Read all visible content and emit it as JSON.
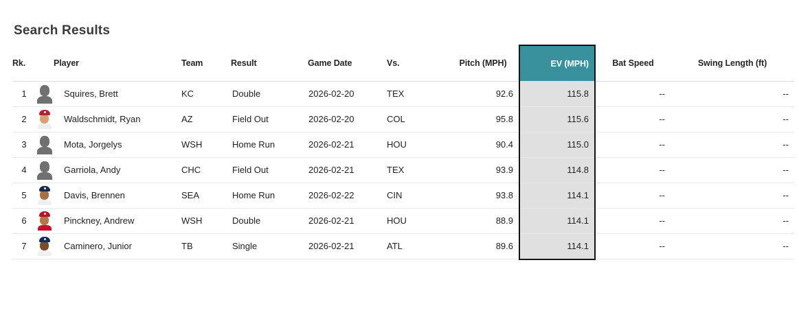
{
  "page": {
    "title": "Search Results"
  },
  "table": {
    "columns": [
      {
        "key": "rk",
        "label": "Rk."
      },
      {
        "key": "player",
        "label": "Player"
      },
      {
        "key": "team",
        "label": "Team"
      },
      {
        "key": "result",
        "label": "Result"
      },
      {
        "key": "game_date",
        "label": "Game Date"
      },
      {
        "key": "vs",
        "label": "Vs."
      },
      {
        "key": "pitch_mph",
        "label": "Pitch (MPH)"
      },
      {
        "key": "ev_mph",
        "label": "EV (MPH)",
        "highlighted": true
      },
      {
        "key": "bat_speed",
        "label": "Bat Speed"
      },
      {
        "key": "swing_length",
        "label": "Swing Length (ft)"
      }
    ],
    "highlight_colors": {
      "header_bg": "#39919d",
      "header_text": "#ffffff",
      "cell_bg": "#e0e0e0",
      "border": "#111111"
    },
    "rows": [
      {
        "rk": "1",
        "player": "Squires, Brett",
        "team": "KC",
        "result": "Double",
        "game_date": "2026-02-20",
        "vs": "TEX",
        "pitch_mph": "92.6",
        "ev_mph": "115.8",
        "bat_speed": "--",
        "swing_length": "--",
        "avatar": {
          "type": "silhouette",
          "color": "#707070"
        }
      },
      {
        "rk": "2",
        "player": "Waldschmidt, Ryan",
        "team": "AZ",
        "result": "Field Out",
        "game_date": "2026-02-20",
        "vs": "COL",
        "pitch_mph": "95.8",
        "ev_mph": "115.6",
        "bat_speed": "--",
        "swing_length": "--",
        "avatar": {
          "type": "photo",
          "cap": "#b22234",
          "skin": "#d9a078",
          "jersey": "#ededed"
        }
      },
      {
        "rk": "3",
        "player": "Mota, Jorgelys",
        "team": "WSH",
        "result": "Home Run",
        "game_date": "2026-02-21",
        "vs": "HOU",
        "pitch_mph": "90.4",
        "ev_mph": "115.0",
        "bat_speed": "--",
        "swing_length": "--",
        "avatar": {
          "type": "silhouette",
          "color": "#707070"
        }
      },
      {
        "rk": "4",
        "player": "Garriola, Andy",
        "team": "CHC",
        "result": "Field Out",
        "game_date": "2026-02-21",
        "vs": "TEX",
        "pitch_mph": "93.9",
        "ev_mph": "114.8",
        "bat_speed": "--",
        "swing_length": "--",
        "avatar": {
          "type": "silhouette",
          "color": "#707070"
        }
      },
      {
        "rk": "5",
        "player": "Davis, Brennen",
        "team": "SEA",
        "result": "Home Run",
        "game_date": "2026-02-22",
        "vs": "CIN",
        "pitch_mph": "93.8",
        "ev_mph": "114.1",
        "bat_speed": "--",
        "swing_length": "--",
        "avatar": {
          "type": "photo",
          "cap": "#1b2a4a",
          "skin": "#a96f44",
          "jersey": "#f0f0f0"
        }
      },
      {
        "rk": "6",
        "player": "Pinckney, Andrew",
        "team": "WSH",
        "result": "Double",
        "game_date": "2026-02-21",
        "vs": "HOU",
        "pitch_mph": "88.9",
        "ev_mph": "114.1",
        "bat_speed": "--",
        "swing_length": "--",
        "avatar": {
          "type": "photo",
          "cap": "#ba122b",
          "skin": "#b5774a",
          "jersey": "#c8102e"
        }
      },
      {
        "rk": "7",
        "player": "Caminero, Junior",
        "team": "TB",
        "result": "Single",
        "game_date": "2026-02-21",
        "vs": "ATL",
        "pitch_mph": "89.6",
        "ev_mph": "114.1",
        "bat_speed": "--",
        "swing_length": "--",
        "avatar": {
          "type": "photo",
          "cap": "#0f2d5c",
          "skin": "#7a4a2b",
          "jersey": "#f0f0f0"
        }
      }
    ]
  }
}
